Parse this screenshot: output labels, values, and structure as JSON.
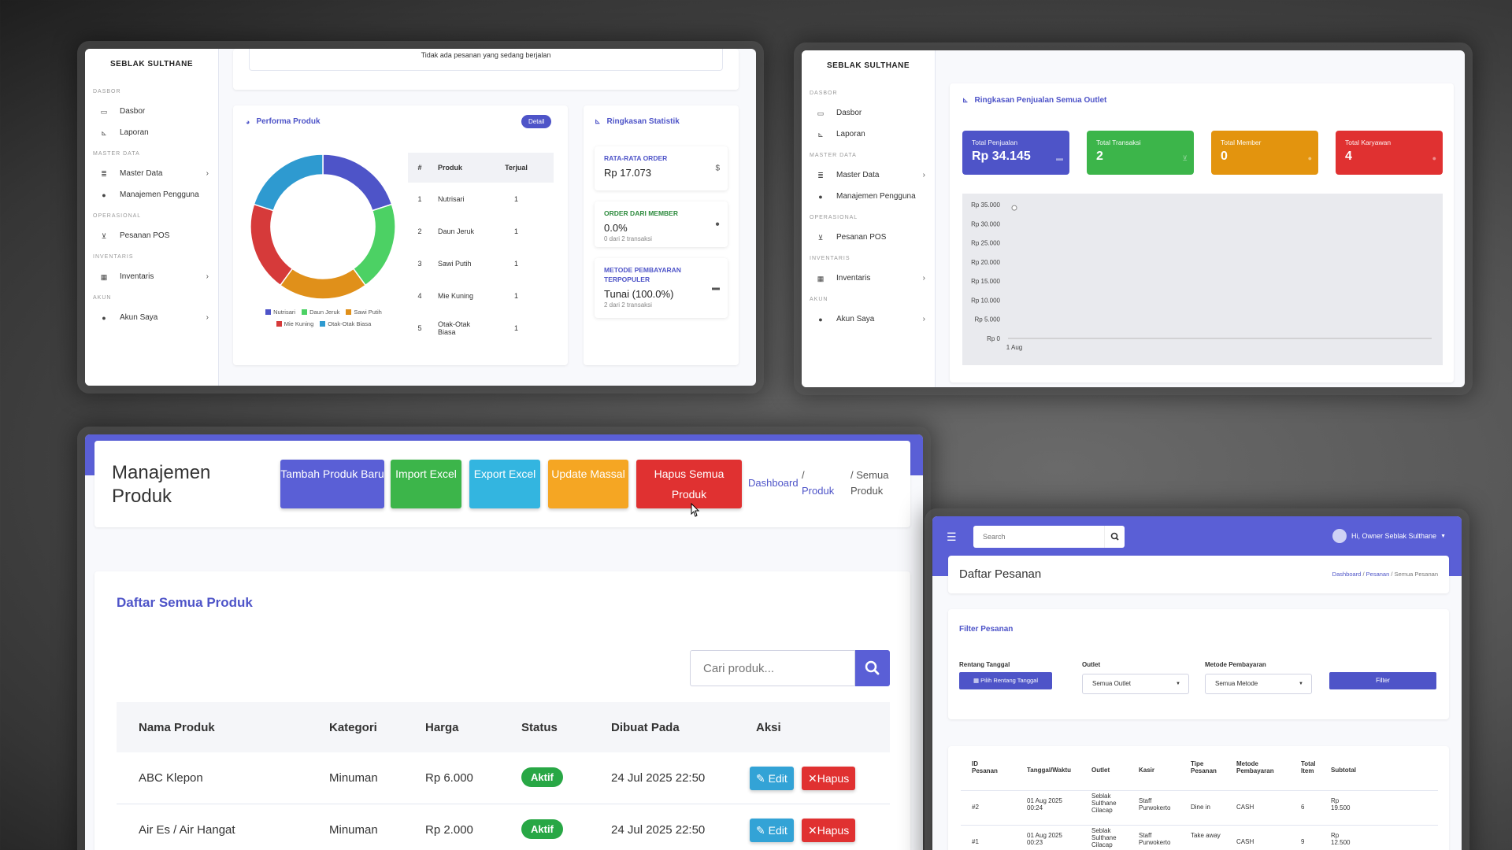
{
  "sidebar": {
    "brand": "SEBLAK SULTHANE",
    "sections": {
      "dasbor": "DASBOR",
      "master": "MASTER DATA",
      "operasional": "OPERASIONAL",
      "inventaris": "INVENTARIS",
      "akun": "AKUN"
    },
    "items": {
      "dasbor": "Dasbor",
      "laporan": "Laporan",
      "master_data": "Master Data",
      "manajemen_pengguna": "Manajemen Pengguna",
      "pesanan_pos": "Pesanan POS",
      "inventaris": "Inventaris",
      "akun_saya": "Akun Saya"
    }
  },
  "panel1": {
    "no_orders": "Tidak ada pesanan yang sedang berjalan",
    "performa": {
      "title": "Performa Produk",
      "detail_label": "Detail",
      "table_headers": [
        "#",
        "Produk",
        "Terjual"
      ],
      "rows": [
        {
          "no": "1",
          "produk": "Nutrisari",
          "terjual": "1"
        },
        {
          "no": "2",
          "produk": "Daun Jeruk",
          "terjual": "1"
        },
        {
          "no": "3",
          "produk": "Sawi Putih",
          "terjual": "1"
        },
        {
          "no": "4",
          "produk": "Mie Kuning",
          "terjual": "1"
        },
        {
          "no": "5",
          "produk": "Otak-Otak Biasa",
          "terjual": "1"
        }
      ],
      "legend": [
        "Nutrisari",
        "Daun Jeruk",
        "Sawi Putih",
        "Mie Kuning",
        "Otak-Otak Biasa"
      ]
    },
    "ringkasan": {
      "title": "Ringkasan Statistik",
      "avg_label": "RATA-RATA ORDER",
      "avg_value": "Rp 17.073",
      "avg_icon": "$",
      "member_label": "ORDER DARI MEMBER",
      "member_value": "0.0%",
      "member_sub": "0 dari 2 transaksi",
      "method_label": "METODE PEMBAYARAN TERPOPULER",
      "method_value": "Tunai (100.0%)",
      "method_sub": "2 dari 2 transaksi"
    }
  },
  "chart_data": {
    "type": "pie",
    "donut": true,
    "categories": [
      "Nutrisari",
      "Daun Jeruk",
      "Sawi Putih",
      "Mie Kuning",
      "Otak-Otak Biasa"
    ],
    "values": [
      1,
      1,
      1,
      1,
      1
    ],
    "colors": [
      "#4e54c8",
      "#4cd164",
      "#e0901a",
      "#d63a3a",
      "#2e9ad0"
    ],
    "legend_position": "bottom"
  },
  "panel2": {
    "title": "Ringkasan Penjualan Semua Outlet",
    "kpis": [
      {
        "label": "Total Penjualan",
        "value": "Rp 34.145",
        "color": "#4e54c8"
      },
      {
        "label": "Total Transaksi",
        "value": "2",
        "color": "#3cb54a"
      },
      {
        "label": "Total Member",
        "value": "0",
        "color": "#e3940e"
      },
      {
        "label": "Total Karyawan",
        "value": "4",
        "color": "#e03131"
      }
    ],
    "line_chart": {
      "type": "line",
      "x": [
        "1 Aug"
      ],
      "y": [
        34145
      ],
      "y_ticks": [
        "Rp 35.000",
        "Rp 30.000",
        "Rp 25.000",
        "Rp 20.000",
        "Rp 15.000",
        "Rp 10.000",
        "Rp 5.000",
        "Rp 0"
      ],
      "x_ticks": [
        "1 Aug"
      ],
      "ylim": [
        0,
        35000
      ]
    }
  },
  "panel3": {
    "title": "Manajemen Produk",
    "buttons": {
      "tambah": "Tambah Produk Baru",
      "import": "Import Excel",
      "export": "Export Excel",
      "update": "Update Massal",
      "hapus_semua": "Hapus Semua Produk"
    },
    "breadcrumb": {
      "dashboard": "Dashboard",
      "sep": "/",
      "produk": "Produk",
      "semua": "Semua Produk"
    },
    "list_title": "Daftar Semua Produk",
    "search_placeholder": "Cari produk...",
    "headers": {
      "nama": "Nama Produk",
      "kategori": "Kategori",
      "harga": "Harga",
      "status": "Status",
      "dibuat": "Dibuat Pada",
      "aksi": "Aksi"
    },
    "rows": [
      {
        "nama": "ABC Klepon",
        "kategori": "Minuman",
        "harga": "Rp 6.000",
        "status": "Aktif",
        "dibuat": "24 Jul 2025 22:50"
      },
      {
        "nama": "Air Es / Air Hangat",
        "kategori": "Minuman",
        "harga": "Rp 2.000",
        "status": "Aktif",
        "dibuat": "24 Jul 2025 22:50"
      }
    ],
    "edit_label": "Edit",
    "hapus_label": "Hapus"
  },
  "panel4": {
    "search_placeholder": "Search",
    "user": "Hi, Owner Seblak Sulthane",
    "title": "Daftar Pesanan",
    "breadcrumb": {
      "dashboard": "Dashboard",
      "pesanan": "Pesanan",
      "semua": "Semua Pesanan",
      "sep": "/"
    },
    "filter": {
      "title": "Filter Pesanan",
      "rentang_label": "Rentang Tanggal",
      "rentang_btn": "Pilih Rentang Tanggal",
      "outlet_label": "Outlet",
      "outlet_value": "Semua Outlet",
      "metode_label": "Metode Pembayaran",
      "metode_value": "Semua Metode",
      "filter_btn": "Filter"
    },
    "headers": {
      "id": "ID Pesanan",
      "tanggal": "Tanggal/Waktu",
      "outlet": "Outlet",
      "kasir": "Kasir",
      "tipe": "Tipe Pesanan",
      "metode": "Metode Pembayaran",
      "total": "Total Item",
      "subtotal": "Subtotal"
    },
    "rows": [
      {
        "id": "#2",
        "tanggal": "01 Aug 2025 00:24",
        "outlet": "Seblak Sulthane Cilacap",
        "kasir": "Staff Purwokerto",
        "tipe": "Dine in",
        "metode": "CASH",
        "total": "6",
        "subtotal": "Rp 19.500"
      },
      {
        "id": "#1",
        "tanggal": "01 Aug 2025 00:23",
        "outlet": "Seblak Sulthane Cilacap",
        "kasir": "Staff Purwokerto",
        "tipe": "Take away",
        "metode": "CASH",
        "total": "9",
        "subtotal": "Rp 12.500"
      }
    ]
  }
}
